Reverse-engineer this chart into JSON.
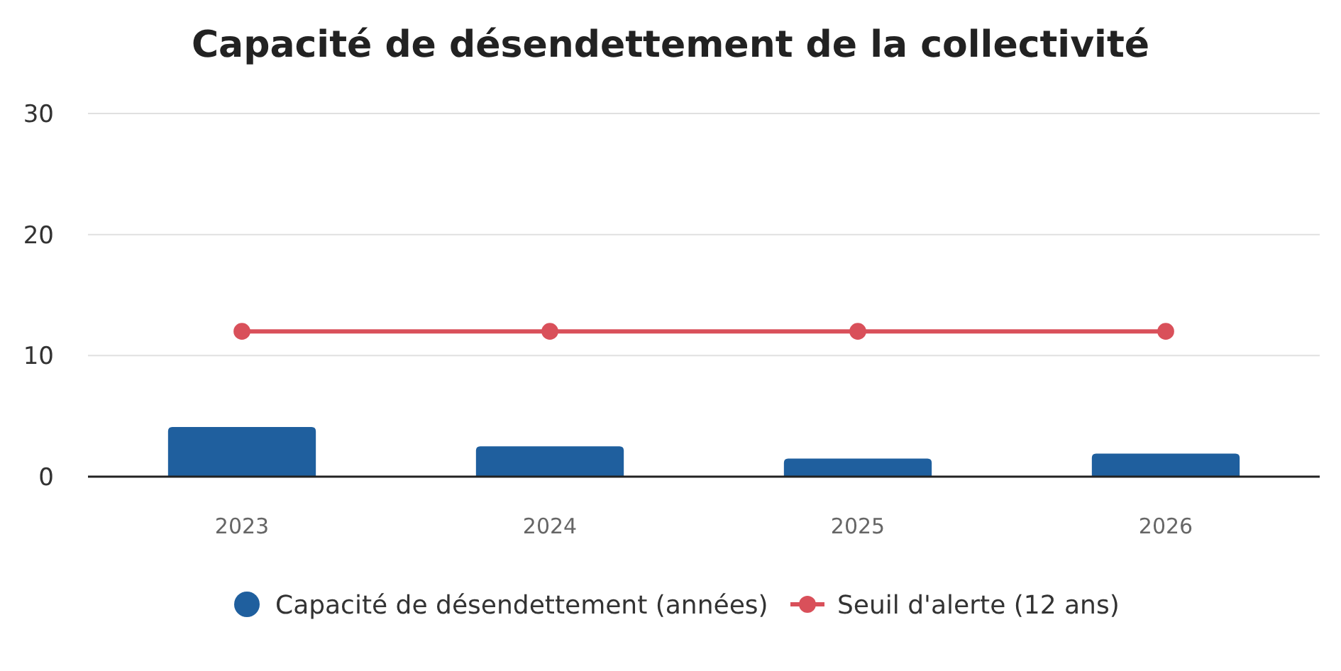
{
  "chart_data": {
    "type": "bar",
    "title": "Capacité de désendettement de la collectivité",
    "categories": [
      "2023",
      "2024",
      "2025",
      "2026"
    ],
    "series": [
      {
        "name": "Capacité de désendettement (années)",
        "color": "#1f5f9e",
        "values": [
          4.1,
          2.5,
          1.5,
          1.9
        ]
      },
      {
        "name": "Seuil d'alerte (12 ans)",
        "color": "#d9505a",
        "type": "line",
        "values": [
          12,
          12,
          12,
          12
        ]
      }
    ],
    "ylim": [
      0,
      30
    ],
    "yticks": [
      0,
      10,
      20,
      30
    ],
    "grid": "y",
    "legend": "bottom",
    "marker": "circle"
  }
}
